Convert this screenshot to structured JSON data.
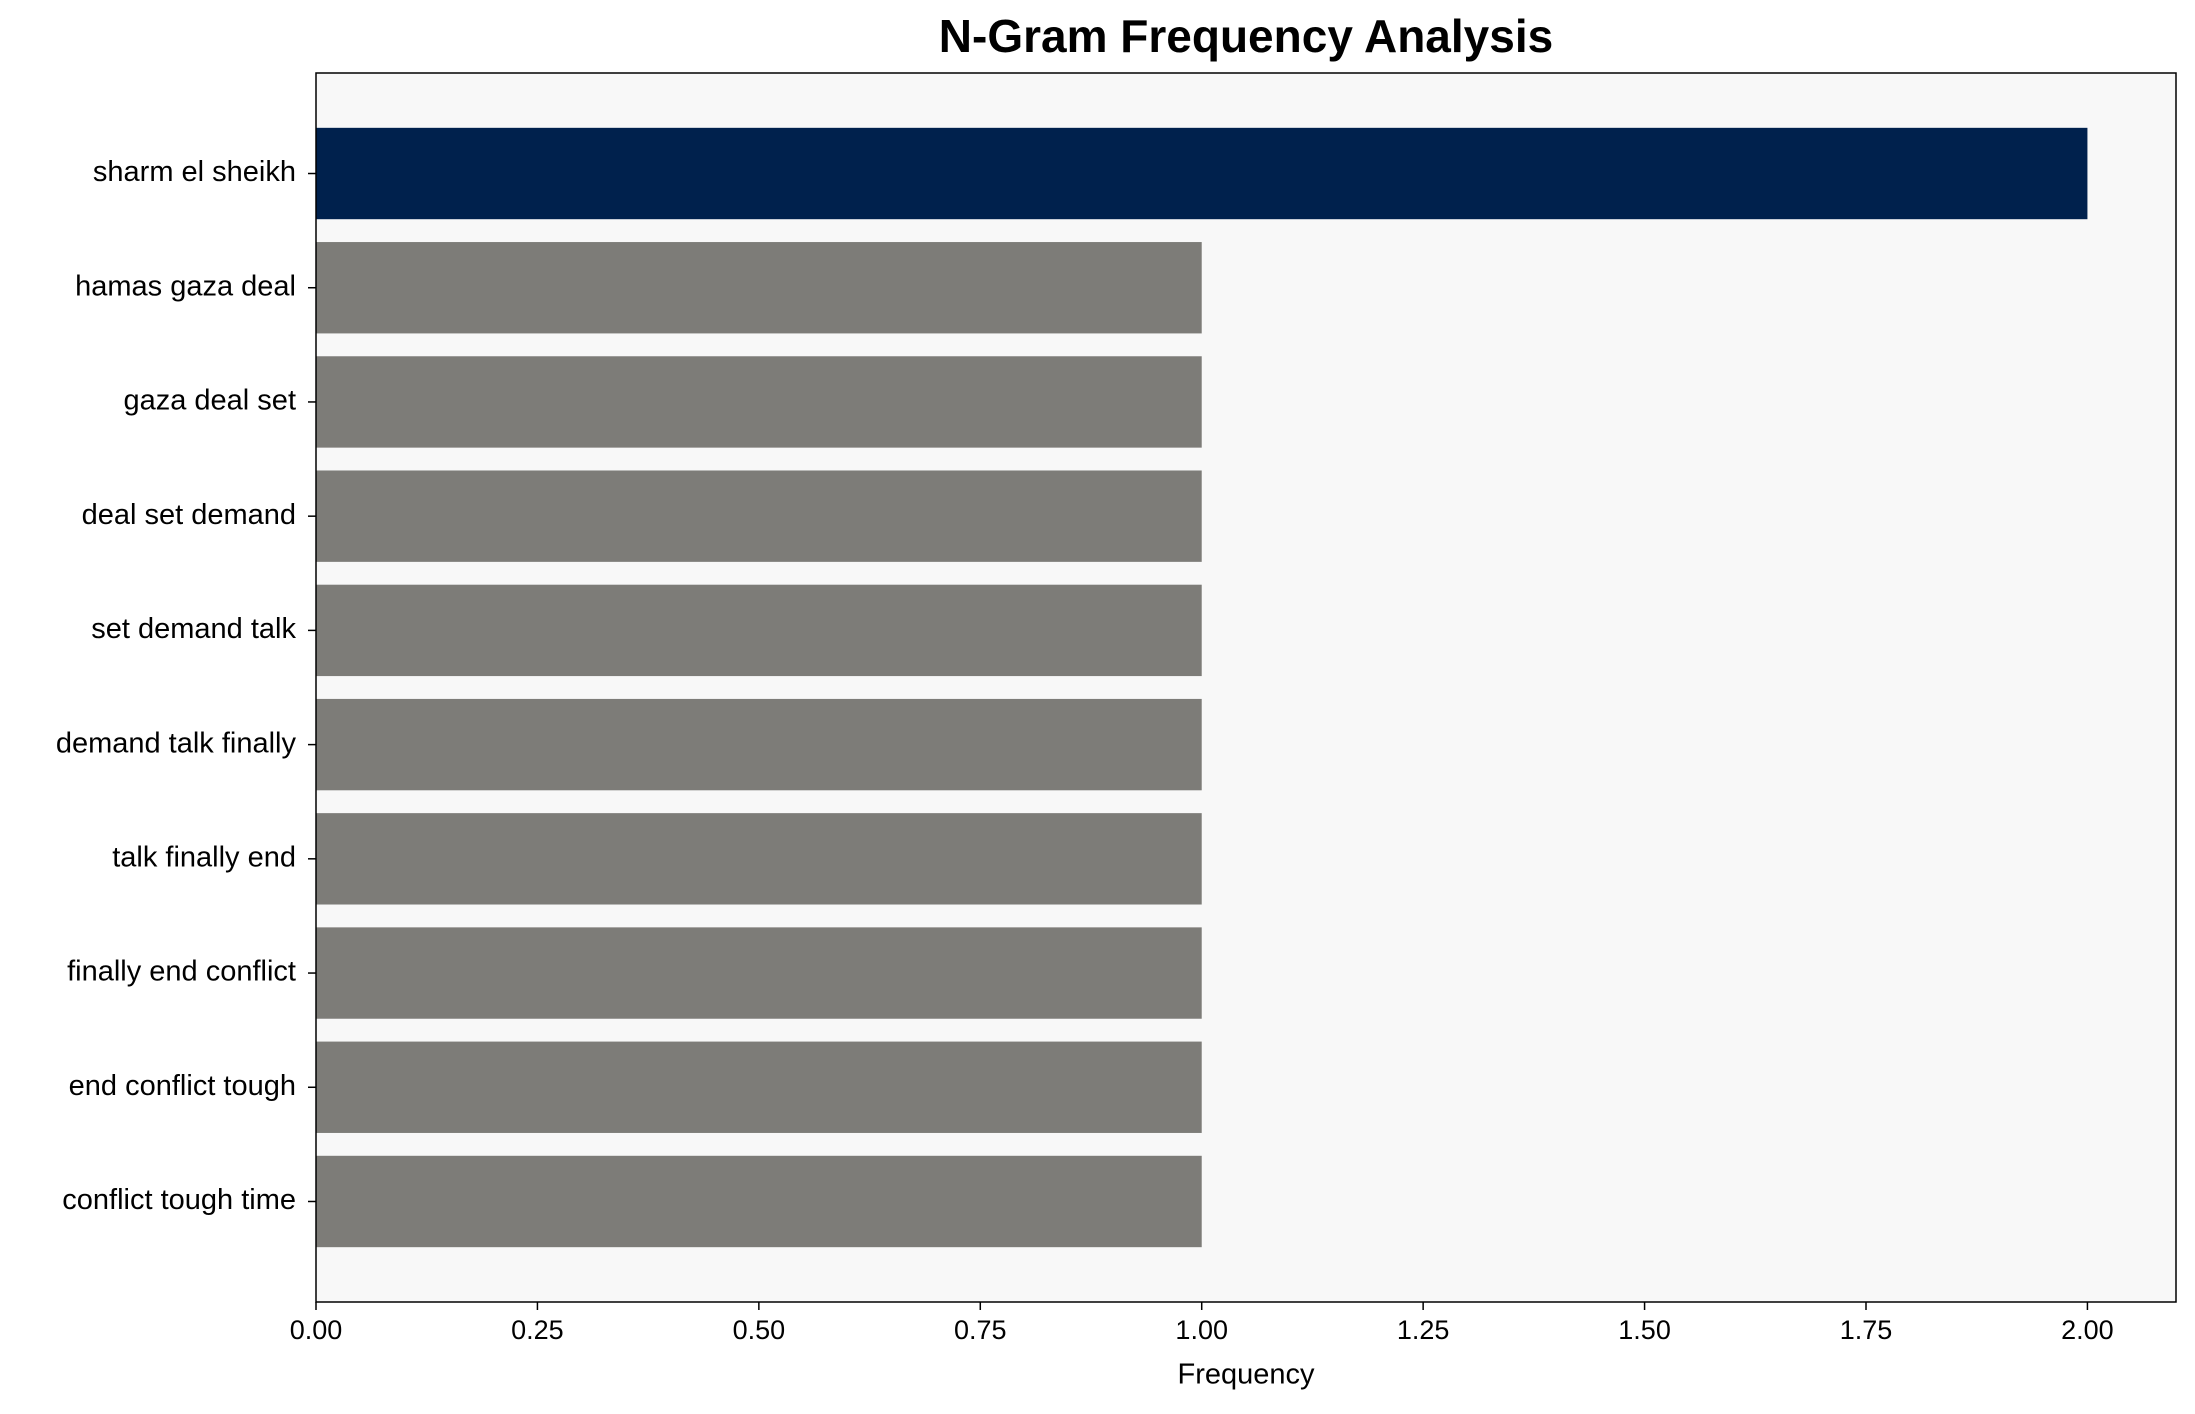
{
  "chart_data": {
    "type": "barh",
    "title": "N-Gram Frequency Analysis",
    "x_label": "Frequency",
    "categories": [
      "sharm el sheikh",
      "hamas gaza deal",
      "gaza deal set",
      "deal set demand",
      "set demand talk",
      "demand talk finally",
      "talk finally end",
      "finally end conflict",
      "end conflict tough",
      "conflict tough time"
    ],
    "values": [
      2,
      1,
      1,
      1,
      1,
      1,
      1,
      1,
      1,
      1
    ],
    "colors": [
      "#00214d",
      "#7d7c78",
      "#7d7c78",
      "#7d7c78",
      "#7d7c78",
      "#7d7c78",
      "#7d7c78",
      "#7d7c78",
      "#7d7c78",
      "#7d7c78"
    ],
    "xlim": [
      0,
      2.1
    ],
    "xticks": [
      {
        "value": 0,
        "label": "0.00"
      },
      {
        "value": 0.25,
        "label": "0.25"
      },
      {
        "value": 0.5,
        "label": "0.50"
      },
      {
        "value": 0.75,
        "label": "0.75"
      },
      {
        "value": 1,
        "label": "1.00"
      },
      {
        "value": 1.25,
        "label": "1.25"
      },
      {
        "value": 1.5,
        "label": "1.50"
      },
      {
        "value": 1.75,
        "label": "1.75"
      },
      {
        "value": 2,
        "label": "2.00"
      }
    ],
    "background": "#f8f8f8"
  }
}
